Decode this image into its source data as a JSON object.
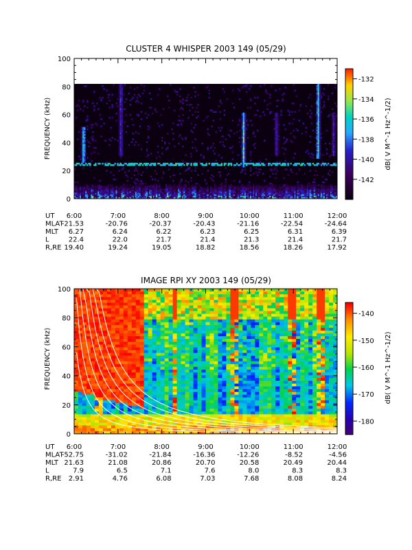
{
  "chart_data": [
    {
      "type": "heatmap",
      "title": "CLUSTER 4 WHISPER 2003 149 (05/29)",
      "ylabel": "FREQUENCY (kHz)",
      "ylim": [
        0,
        100
      ],
      "data_ylim": [
        0,
        80
      ],
      "yticks": [
        "0",
        "20",
        "40",
        "60",
        "80",
        "100"
      ],
      "xticks": [
        "6:00",
        "7:00",
        "8:00",
        "9:00",
        "10:00",
        "11:00",
        "12:00"
      ],
      "colorbar": {
        "label": "dB( V M^-1 Hz^-1/2)",
        "range": [
          -144,
          -131
        ],
        "ticks": [
          "-132",
          "-134",
          "-136",
          "-138",
          "-140",
          "-142"
        ],
        "colormap": "rainbow-dark"
      },
      "background_color": "#0a0010",
      "features": {
        "noise_band_khz": 24,
        "emission_bursts_hours": [
          6.2,
          7.05,
          9.85,
          10.6,
          11.55,
          11.9
        ]
      },
      "ephemeris": {
        "rows": [
          {
            "label": "UT",
            "values": [
              "6:00",
              "7:00",
              "8:00",
              "9:00",
              "10:00",
              "11:00",
              "12:00"
            ]
          },
          {
            "label": "MLAT",
            "values": [
              "-21.53",
              "-20.76",
              "-20.37",
              "-20.43",
              "-21.16",
              "-22.54",
              "-24.64"
            ]
          },
          {
            "label": "MLT",
            "values": [
              "6.27",
              "6.24",
              "6.22",
              "6.23",
              "6.25",
              "6.31",
              "6.39"
            ]
          },
          {
            "label": "L",
            "values": [
              "22.4",
              "22.0",
              "21.7",
              "21.4",
              "21.3",
              "21.4",
              "21.7"
            ]
          },
          {
            "label": "R,RE",
            "values": [
              "19.40",
              "19.24",
              "19.05",
              "18.82",
              "18.56",
              "18.26",
              "17.92"
            ]
          }
        ]
      }
    },
    {
      "type": "heatmap",
      "title": "IMAGE RPI XY 2003 149 (05/29)",
      "ylabel": "FREQUENCY (kHz)",
      "ylim": [
        0,
        100
      ],
      "yticks": [
        "0",
        "20",
        "40",
        "60",
        "80",
        "100"
      ],
      "xticks": [
        "6:00",
        "7:00",
        "8:00",
        "9:00",
        "10:00",
        "11:00",
        "12:00"
      ],
      "colorbar": {
        "label": "dB( V M^-1 Hz^-1/2)",
        "range": [
          -185,
          -136
        ],
        "ticks": [
          "-140",
          "-150",
          "-160",
          "-170",
          "-180"
        ],
        "colormap": "rainbow"
      },
      "background_color": "#ffffff",
      "features": {
        "overlay_curves": "white cyclotron-like curves",
        "red_column_hours": [
          6.55,
          8.3,
          9.65,
          11.0,
          11.6
        ]
      },
      "ephemeris": {
        "rows": [
          {
            "label": "UT",
            "values": [
              "6:00",
              "7:00",
              "8:00",
              "9:00",
              "10:00",
              "11:00",
              "12:00"
            ]
          },
          {
            "label": "MLAT",
            "values": [
              "-52.75",
              "-31.02",
              "-21.84",
              "-16.36",
              "-12.26",
              "-8.52",
              "-4.56"
            ]
          },
          {
            "label": "MLT",
            "values": [
              "21.63",
              "21.08",
              "20.86",
              "20.70",
              "20.58",
              "20.49",
              "20.44"
            ]
          },
          {
            "label": "L",
            "values": [
              "7.9",
              "6.5",
              "7.1",
              "7.6",
              "8.0",
              "8.3",
              "8.3"
            ]
          },
          {
            "label": "R,RE",
            "values": [
              "2.91",
              "4.76",
              "6.08",
              "7.03",
              "7.68",
              "8.08",
              "8.24"
            ]
          }
        ]
      }
    }
  ]
}
